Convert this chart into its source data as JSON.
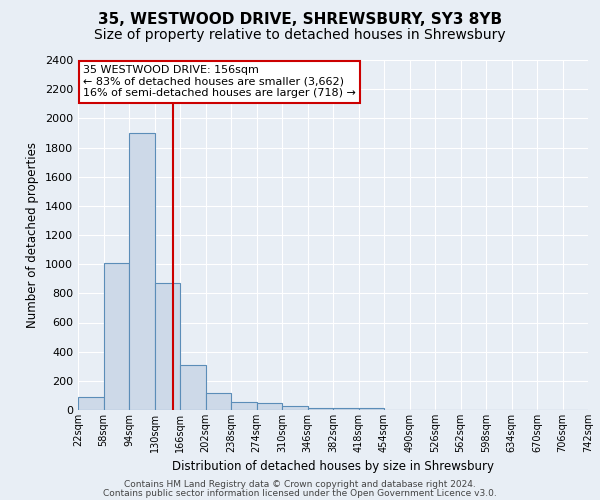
{
  "title_line1": "35, WESTWOOD DRIVE, SHREWSBURY, SY3 8YB",
  "title_line2": "Size of property relative to detached houses in Shrewsbury",
  "xlabel": "Distribution of detached houses by size in Shrewsbury",
  "ylabel": "Number of detached properties",
  "annotation_title": "35 WESTWOOD DRIVE: 156sqm",
  "annotation_line2": "← 83% of detached houses are smaller (3,662)",
  "annotation_line3": "16% of semi-detached houses are larger (718) →",
  "bar_left_edges": [
    22,
    58,
    94,
    130,
    166,
    202,
    238,
    274,
    310,
    346,
    382,
    418,
    454,
    490,
    526,
    562,
    598,
    634,
    670,
    706
  ],
  "bar_heights": [
    90,
    1010,
    1900,
    870,
    310,
    120,
    55,
    45,
    25,
    15,
    15,
    15,
    0,
    0,
    0,
    0,
    0,
    0,
    0,
    0
  ],
  "bin_width": 36,
  "bar_color": "#cdd9e8",
  "bar_edge_color": "#5b8db8",
  "vline_x": 156,
  "vline_color": "#cc0000",
  "ylim": [
    0,
    2400
  ],
  "ytick_step": 200,
  "xtick_labels": [
    "22sqm",
    "58sqm",
    "94sqm",
    "130sqm",
    "166sqm",
    "202sqm",
    "238sqm",
    "274sqm",
    "310sqm",
    "346sqm",
    "382sqm",
    "418sqm",
    "454sqm",
    "490sqm",
    "526sqm",
    "562sqm",
    "598sqm",
    "634sqm",
    "670sqm",
    "706sqm",
    "742sqm"
  ],
  "bg_color": "#e8eef5",
  "grid_color": "#ffffff",
  "footnote1": "Contains HM Land Registry data © Crown copyright and database right 2024.",
  "footnote2": "Contains public sector information licensed under the Open Government Licence v3.0.",
  "title_fontsize": 11,
  "subtitle_fontsize": 10,
  "annotation_box_color": "#ffffff",
  "annotation_box_edge": "#cc0000",
  "ann_fontsize": 8
}
